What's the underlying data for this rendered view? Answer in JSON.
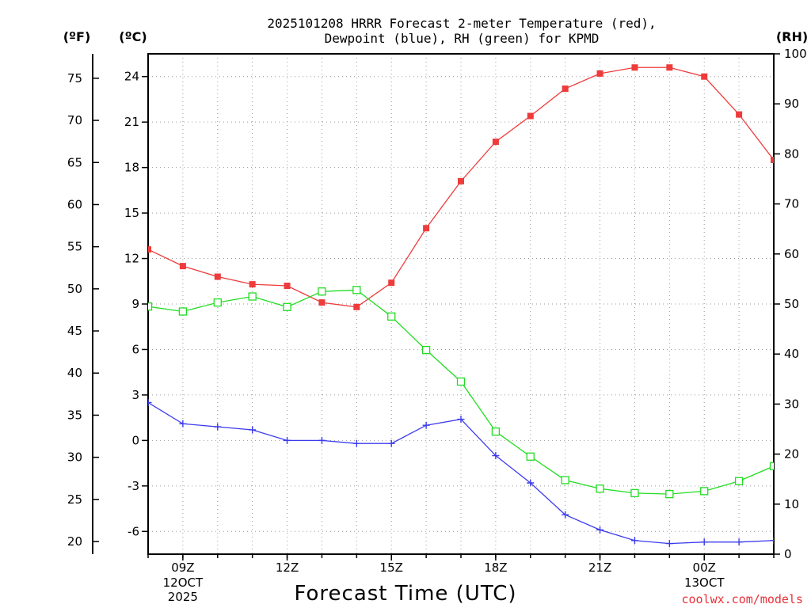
{
  "chart_data": {
    "type": "line",
    "title": "2025101208 HRRR Forecast 2-meter Temperature (red),",
    "subtitle": "Dewpoint (blue), RH (green) for KPMD",
    "xlabel": "Forecast Time (UTC)",
    "credit": "coolwx.com/models",
    "units": {
      "fahrenheit": "(ºF)",
      "celsius": "(ºC)",
      "rh": "(RH)"
    },
    "x_hours": [
      8,
      9,
      10,
      11,
      12,
      13,
      14,
      15,
      16,
      17,
      18,
      19,
      20,
      21,
      22,
      23,
      24,
      25,
      26
    ],
    "xlim": [
      8,
      26
    ],
    "x_ticks": [
      {
        "hour": 9,
        "label": "09Z",
        "sub1": "12OCT",
        "sub2": "2025"
      },
      {
        "hour": 12,
        "label": "12Z",
        "sub1": "",
        "sub2": ""
      },
      {
        "hour": 15,
        "label": "15Z",
        "sub1": "",
        "sub2": ""
      },
      {
        "hour": 18,
        "label": "18Z",
        "sub1": "",
        "sub2": ""
      },
      {
        "hour": 21,
        "label": "21Z",
        "sub1": "",
        "sub2": ""
      },
      {
        "hour": 24,
        "label": "00Z",
        "sub1": "13OCT",
        "sub2": ""
      }
    ],
    "celsius_axis": {
      "ylim": [
        -7.5,
        25.5
      ],
      "ticks": [
        "-6",
        "-3",
        "0",
        "3",
        "6",
        "9",
        "12",
        "15",
        "18",
        "21",
        "24"
      ]
    },
    "fahrenheit_axis": {
      "ticks": [
        "20",
        "25",
        "30",
        "35",
        "40",
        "45",
        "50",
        "55",
        "60",
        "65",
        "70",
        "75"
      ]
    },
    "rh_axis": {
      "ylim": [
        0,
        100
      ],
      "ticks": [
        "0",
        "10",
        "20",
        "30",
        "40",
        "50",
        "60",
        "70",
        "80",
        "90",
        "100"
      ]
    },
    "series": [
      {
        "name": "2-meter Temperature",
        "unit": "C",
        "axis": "celsius",
        "color": "#ee3b3b",
        "marker": "filled-square",
        "values": [
          12.6,
          11.5,
          10.8,
          10.3,
          10.2,
          9.1,
          8.8,
          10.4,
          14.0,
          17.1,
          19.7,
          21.4,
          23.2,
          24.2,
          24.6,
          24.6,
          24.0,
          21.5,
          18.5
        ]
      },
      {
        "name": "Dewpoint",
        "unit": "C",
        "axis": "celsius",
        "color": "#3b3bee",
        "marker": "plus",
        "values": [
          2.5,
          1.1,
          0.9,
          0.7,
          0.0,
          0.0,
          -0.2,
          -0.2,
          1.0,
          1.4,
          -1.0,
          -2.8,
          -4.9,
          -5.9,
          -6.6,
          -6.8,
          -6.7,
          -6.7,
          -6.6
        ]
      },
      {
        "name": "RH",
        "unit": "%",
        "axis": "rh",
        "color": "#22dd22",
        "marker": "open-square",
        "values": [
          49.5,
          48.5,
          50.3,
          51.5,
          49.4,
          52.5,
          52.8,
          47.5,
          40.8,
          34.5,
          24.5,
          19.5,
          14.8,
          13.1,
          12.2,
          12.0,
          12.6,
          14.6,
          17.6
        ]
      }
    ]
  }
}
